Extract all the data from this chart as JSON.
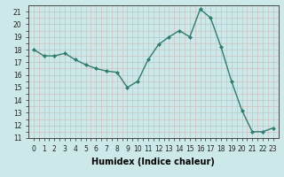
{
  "x": [
    0,
    1,
    2,
    3,
    4,
    5,
    6,
    7,
    8,
    9,
    10,
    11,
    12,
    13,
    14,
    15,
    16,
    17,
    18,
    19,
    20,
    21,
    22,
    23
  ],
  "y": [
    18.0,
    17.5,
    17.5,
    17.7,
    17.2,
    16.8,
    16.5,
    16.3,
    16.2,
    15.0,
    15.5,
    17.2,
    18.4,
    19.0,
    19.5,
    19.0,
    21.2,
    20.5,
    18.2,
    15.5,
    13.2,
    11.5,
    11.5,
    11.8
  ],
  "line_color": "#2e7d6e",
  "marker": "D",
  "marker_size": 2.0,
  "bg_color": "#cce8e8",
  "grid_major_color": "#b8c8c8",
  "grid_minor_color": "#d4c0c0",
  "xlabel": "Humidex (Indice chaleur)",
  "ylim": [
    11,
    21.5
  ],
  "xlim": [
    -0.5,
    23.5
  ],
  "yticks": [
    11,
    12,
    13,
    14,
    15,
    16,
    17,
    18,
    19,
    20,
    21
  ],
  "xticks": [
    0,
    1,
    2,
    3,
    4,
    5,
    6,
    7,
    8,
    9,
    10,
    11,
    12,
    13,
    14,
    15,
    16,
    17,
    18,
    19,
    20,
    21,
    22,
    23
  ],
  "xlabel_fontsize": 7,
  "tick_fontsize": 5.5
}
